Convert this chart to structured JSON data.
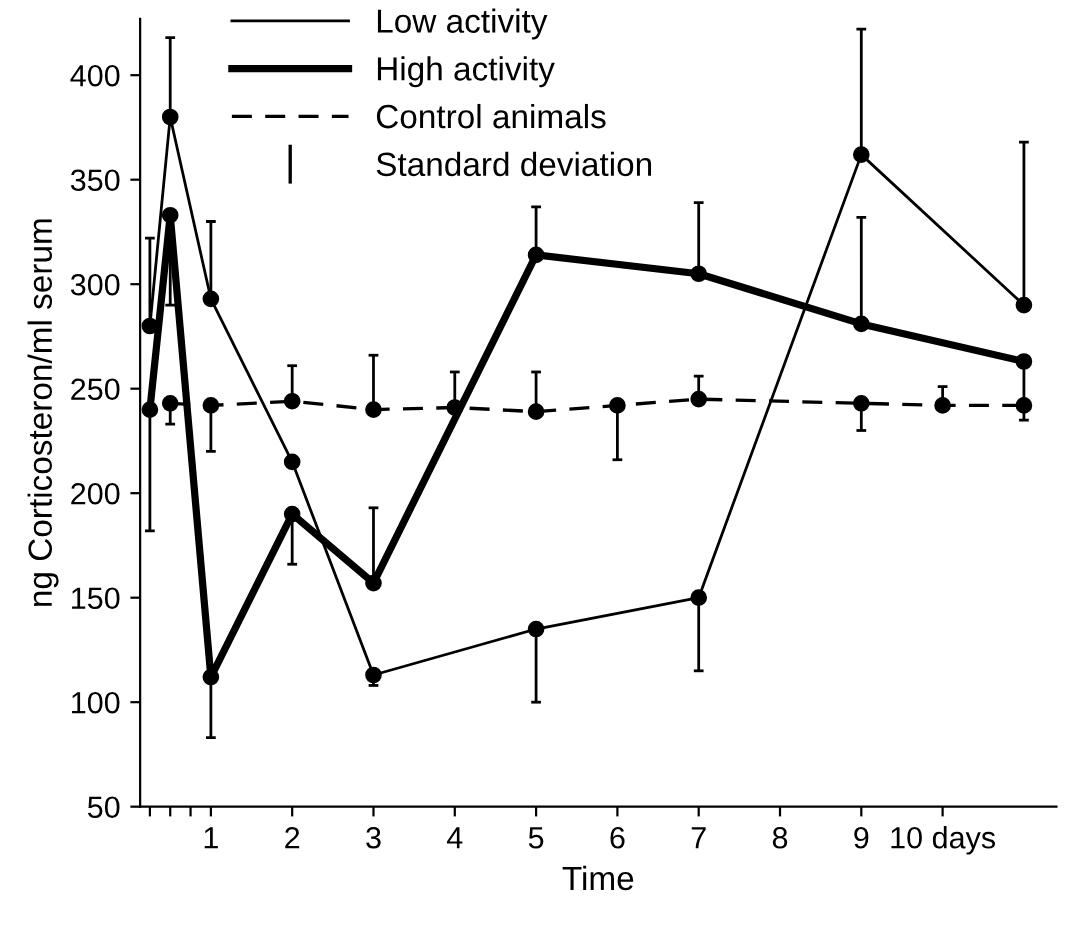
{
  "chart_data": {
    "type": "line",
    "xlabel": "Time",
    "ylabel": "ng Corticosteron/ml serum",
    "xlim": [
      0.13,
      11.4
    ],
    "ylim": [
      50,
      427
    ],
    "xticks": [
      {
        "value": 0.25,
        "label": null
      },
      {
        "value": 0.5,
        "label": null
      },
      {
        "value": 0.75,
        "label": null
      },
      1,
      2,
      3,
      4,
      5,
      6,
      7,
      8,
      9,
      {
        "value": 10,
        "label": "10 days"
      }
    ],
    "yticks": [
      50,
      100,
      150,
      200,
      250,
      300,
      350,
      400
    ],
    "grid": false,
    "legend": "top",
    "marker": "circle",
    "annotations": [
      "Standard deviation"
    ],
    "series": [
      {
        "name": "Low activity",
        "color": "#000000",
        "line_style": "solid",
        "x": [
          0.25,
          0.5,
          1,
          2,
          3,
          5,
          7,
          9,
          11
        ],
        "values": [
          280,
          380,
          293,
          215,
          113,
          135,
          150,
          362,
          290
        ],
        "errors": [
          [
            280,
            322
          ],
          [
            380,
            418
          ],
          [
            293,
            330
          ],
          [
            215,
            215
          ],
          [
            108,
            113
          ],
          [
            100,
            135
          ],
          [
            115,
            150
          ],
          [
            362,
            422
          ],
          [
            290,
            368
          ]
        ]
      },
      {
        "name": "High activity",
        "color": "#000000",
        "line_style": "solid",
        "x": [
          0.25,
          0.5,
          1,
          2,
          3,
          5,
          7,
          9,
          11
        ],
        "values": [
          240,
          333,
          112,
          190,
          157,
          314,
          305,
          281,
          263
        ],
        "errors": [
          [
            182,
            240
          ],
          [
            290,
            333
          ],
          [
            83,
            112
          ],
          [
            166,
            190
          ],
          [
            157,
            193
          ],
          [
            314,
            337
          ],
          [
            305,
            339
          ],
          [
            281,
            332
          ],
          [
            235,
            263
          ]
        ]
      },
      {
        "name": "Control animals",
        "color": "#000000",
        "line_style": "dashed",
        "x": [
          0.5,
          1,
          2,
          3,
          4,
          5,
          6,
          7,
          9,
          10,
          11
        ],
        "values": [
          243,
          242,
          244,
          240,
          241,
          239,
          242,
          245,
          243,
          242,
          242
        ],
        "errors": [
          [
            233,
            243
          ],
          [
            220,
            242
          ],
          [
            244,
            261
          ],
          [
            240,
            266
          ],
          [
            241,
            258
          ],
          [
            239,
            258
          ],
          [
            216,
            242
          ],
          [
            245,
            256
          ],
          [
            230,
            243
          ],
          [
            242,
            251
          ],
          null
        ]
      }
    ]
  }
}
